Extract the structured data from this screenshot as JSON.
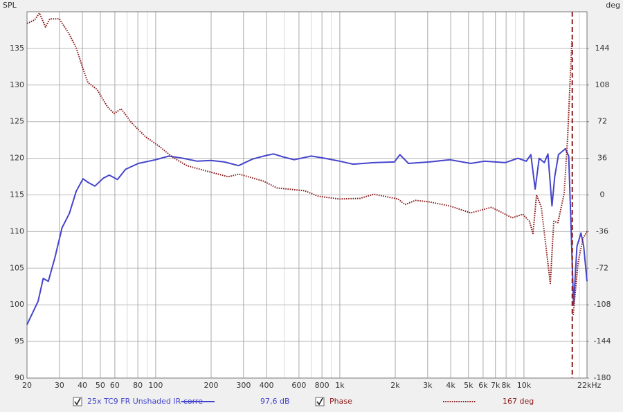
{
  "chart_data": {
    "type": "line",
    "ylabel": "SPL",
    "y2label": "deg",
    "xlog": true,
    "xlim": [
      20,
      22000
    ],
    "xticks": [
      20,
      30,
      40,
      50,
      60,
      80,
      100,
      200,
      300,
      400,
      600,
      800,
      {
        "value": 1000,
        "label": "1k"
      },
      {
        "value": 2000,
        "label": "2k"
      },
      {
        "value": 3000,
        "label": "3k"
      },
      {
        "value": 4000,
        "label": "4k"
      },
      {
        "value": 5000,
        "label": "5k"
      },
      {
        "value": 6000,
        "label": "6k"
      },
      {
        "value": 7000,
        "label": "7k"
      },
      {
        "value": 8000,
        "label": "8k"
      },
      {
        "value": 10000,
        "label": "10k"
      },
      {
        "value": 22000,
        "label": "22kHz"
      }
    ],
    "xminor": [
      70,
      90,
      500,
      700,
      900,
      9000,
      20000
    ],
    "ylim": [
      90,
      140
    ],
    "yticks": [
      90,
      95,
      100,
      105,
      110,
      115,
      120,
      125,
      130,
      135
    ],
    "y2lim": [
      -180,
      180
    ],
    "y2ticks": [
      -180,
      -144,
      -108,
      -72,
      -36,
      0,
      36,
      72,
      108,
      144
    ],
    "grid": true,
    "cursor_x": 18300,
    "cursor_color": "#8b1a1a",
    "series": [
      {
        "name": "25x TC9 FR Unshaded IR-corre",
        "readout": "97,6 dB",
        "color": "#4444cc",
        "style": "solid",
        "axis": "y",
        "x": [
          20,
          23,
          24.5,
          26.1,
          28.4,
          31,
          34,
          37,
          40.3,
          43,
          46.7,
          52,
          56,
          62,
          68.6,
          80.5,
          100,
          118,
          141,
          168,
          200,
          236,
          282,
          336,
          400,
          437,
          490,
          565,
          700,
          830,
          1000,
          1180,
          1530,
          1980,
          2120,
          2360,
          3060,
          3960,
          5140,
          6100,
          7900,
          9270,
          10300,
          10900,
          11500,
          12100,
          12900,
          13500,
          14200,
          14700,
          15400,
          16800,
          17500,
          18600,
          19400,
          20400,
          21100,
          22000
        ],
        "values": [
          97.3,
          100.5,
          103.6,
          103.2,
          106.5,
          110.5,
          112.5,
          115.5,
          117.2,
          116.7,
          116.2,
          117.3,
          117.7,
          117.1,
          118.5,
          119.3,
          119.8,
          120.3,
          120.0,
          119.6,
          119.7,
          119.5,
          119.0,
          119.9,
          120.4,
          120.6,
          120.2,
          119.8,
          120.3,
          120.0,
          119.6,
          119.2,
          119.4,
          119.5,
          120.5,
          119.3,
          119.5,
          119.8,
          119.3,
          119.6,
          119.4,
          120.0,
          119.6,
          120.5,
          115.8,
          120.0,
          119.4,
          120.6,
          113.5,
          117.5,
          120.5,
          121.3,
          120.3,
          100.0,
          108.0,
          109.8,
          108.0,
          103.2
        ]
      },
      {
        "name": "Phase",
        "readout": "167 deg",
        "color": "#8b1a1a",
        "style": "dotted",
        "axis": "y2",
        "x": [
          20,
          22,
          23.4,
          25.2,
          26.6,
          30,
          33.9,
          37,
          40.3,
          42.8,
          48,
          54.6,
          59.5,
          64.9,
          73.9,
          87.9,
          104.5,
          124,
          148,
          191,
          248,
          283,
          383,
          455,
          644,
          765,
          991,
          1286,
          1529,
          2070,
          2260,
          2570,
          3060,
          3960,
          5140,
          6670,
          8640,
          9840,
          10720,
          11200,
          11700,
          12420,
          13900,
          14520,
          15290,
          16530,
          17270,
          18200,
          18300,
          18500,
          19650,
          20900,
          22000
        ],
        "values": [
          168.5,
          172,
          178.7,
          165,
          173,
          173,
          158,
          144.6,
          124,
          110.5,
          103.7,
          86.7,
          80,
          84.6,
          71,
          57.3,
          47.8,
          36.9,
          28.7,
          23.2,
          17.8,
          20.5,
          13.7,
          6.9,
          4.1,
          -1.3,
          -4,
          -3.4,
          0.7,
          -4,
          -9.5,
          -5.4,
          -6.8,
          -10.9,
          -17.7,
          -12.2,
          -22.5,
          -19,
          -25.9,
          -38,
          0,
          -12.2,
          -87,
          -25.9,
          -27.2,
          1.4,
          56,
          151.5,
          null,
          -118,
          -66.8,
          -42.9,
          -36
        ]
      }
    ]
  }
}
